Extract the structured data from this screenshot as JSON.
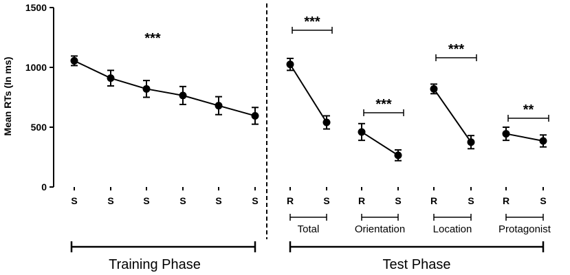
{
  "chart_data": {
    "type": "line",
    "ylabel": "Mean RTs (In ms)",
    "ylim": [
      0,
      1500
    ],
    "yticks": [
      0,
      500,
      1000,
      1500
    ],
    "training": {
      "label": "Training Phase",
      "categories": [
        "S",
        "S",
        "S",
        "S",
        "S",
        "S"
      ],
      "values": [
        1055,
        910,
        820,
        765,
        680,
        595
      ],
      "errors": [
        40,
        65,
        70,
        75,
        75,
        70
      ],
      "significance": "***"
    },
    "test": {
      "label": "Test Phase",
      "groups": [
        {
          "name": "Total",
          "categories": [
            "R",
            "S"
          ],
          "values": [
            1025,
            540
          ],
          "errors": [
            50,
            55
          ],
          "significance": "***"
        },
        {
          "name": "Orientation",
          "categories": [
            "R",
            "S"
          ],
          "values": [
            460,
            265
          ],
          "errors": [
            70,
            45
          ],
          "significance": "***"
        },
        {
          "name": "Location",
          "categories": [
            "R",
            "S"
          ],
          "values": [
            820,
            375
          ],
          "errors": [
            40,
            55
          ],
          "significance": "***"
        },
        {
          "name": "Protagonist",
          "categories": [
            "R",
            "S"
          ],
          "values": [
            445,
            385
          ],
          "errors": [
            55,
            50
          ],
          "significance": "**"
        }
      ]
    }
  }
}
